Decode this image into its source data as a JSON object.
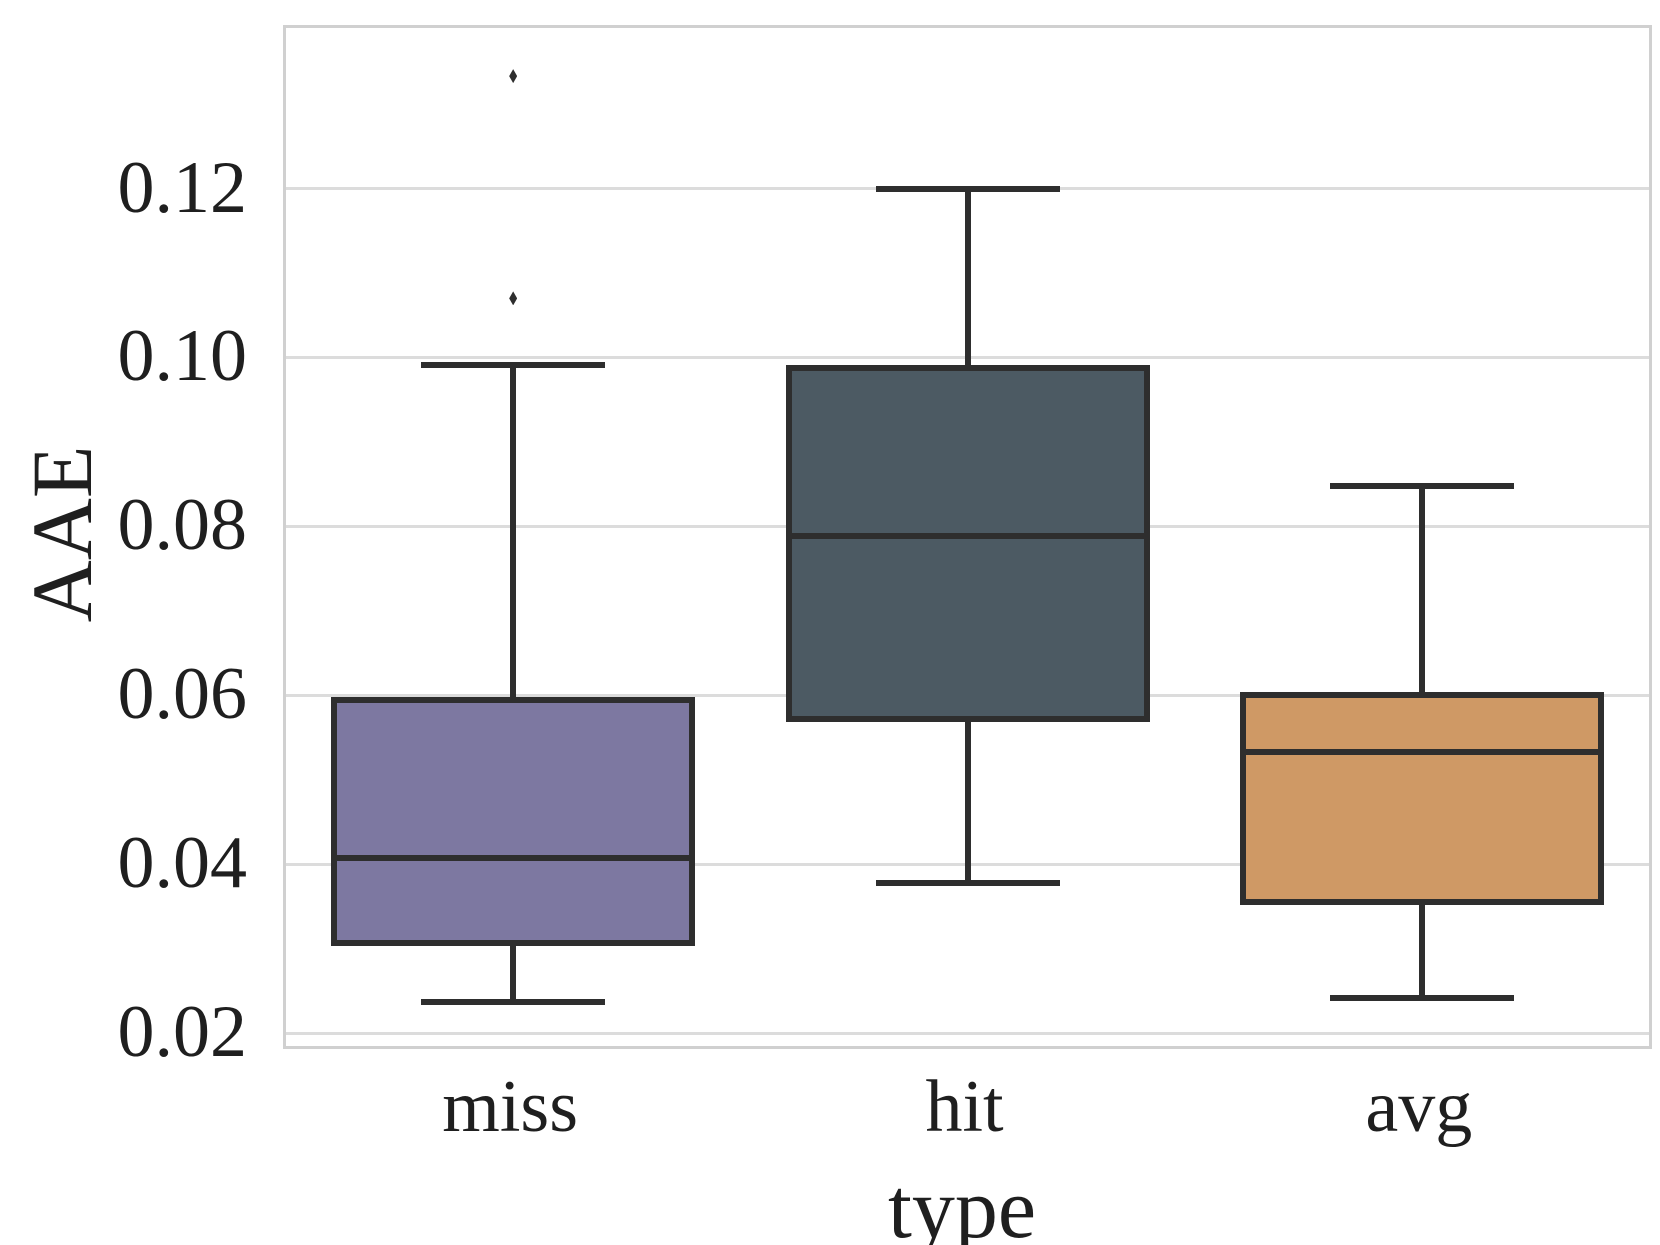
{
  "chart_data": {
    "type": "box",
    "title": "",
    "xlabel": "type",
    "ylabel": "AAE",
    "categories": [
      "miss",
      "hit",
      "avg"
    ],
    "ylim": [
      0.0185,
      0.139
    ],
    "yticks": [
      0.02,
      0.04,
      0.06,
      0.08,
      0.1,
      0.12
    ],
    "ytick_labels": [
      "0.02",
      "0.04",
      "0.06",
      "0.08",
      "0.10",
      "0.12"
    ],
    "grid": true,
    "legend": "none",
    "boxes": [
      {
        "category": "miss",
        "color": "#7d78a1",
        "whisker_low": 0.0237,
        "q1": 0.0307,
        "median": 0.0407,
        "q3": 0.0594,
        "whisker_high": 0.0991,
        "outliers": [
          0.107,
          0.1333
        ]
      },
      {
        "category": "hit",
        "color": "#4c5a63",
        "whisker_low": 0.0378,
        "q1": 0.0572,
        "median": 0.0789,
        "q3": 0.0987,
        "whisker_high": 0.12,
        "outliers": []
      },
      {
        "category": "avg",
        "color": "#cf9965",
        "whisker_low": 0.0242,
        "q1": 0.0356,
        "median": 0.0533,
        "q3": 0.0601,
        "whisker_high": 0.0848,
        "outliers": []
      }
    ],
    "styles": {
      "line_color": "#2e2e2e",
      "grid_color": "#dcdcdc",
      "spine_color": "#d0d0d0",
      "text_color": "#1f1f1f",
      "background": "#ffffff"
    }
  }
}
